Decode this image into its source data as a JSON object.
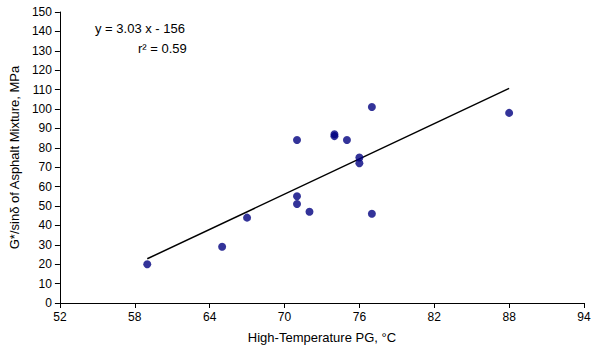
{
  "chart_data": {
    "type": "scatter",
    "x_label": "High-Temperature PG, °C",
    "y_label": "G*/sinδ of Asphalt Mixture, MPa",
    "annotations": [
      "y = 3.03 x - 156",
      "r² = 0.59"
    ],
    "xlim": [
      52,
      94
    ],
    "xticks": [
      52,
      58,
      64,
      70,
      76,
      82,
      88,
      94
    ],
    "ylim": [
      0,
      150
    ],
    "yticks": [
      0,
      10,
      20,
      30,
      40,
      50,
      60,
      70,
      80,
      90,
      100,
      110,
      120,
      130,
      140,
      150
    ],
    "grid": false,
    "series": [
      {
        "type": "scatter",
        "color": "#000080",
        "marker": "circle",
        "x": [
          59,
          65,
          67,
          71,
          71,
          71,
          72,
          74,
          74,
          75,
          76,
          76,
          77,
          77,
          88
        ],
        "values": [
          20,
          29,
          44,
          84,
          55,
          51,
          47,
          87,
          86,
          84,
          75,
          72,
          101,
          46,
          98
        ]
      },
      {
        "type": "line",
        "color": "#000000",
        "line_style": "solid",
        "x": [
          59,
          88
        ],
        "values": [
          22.8,
          110.6
        ]
      }
    ]
  }
}
